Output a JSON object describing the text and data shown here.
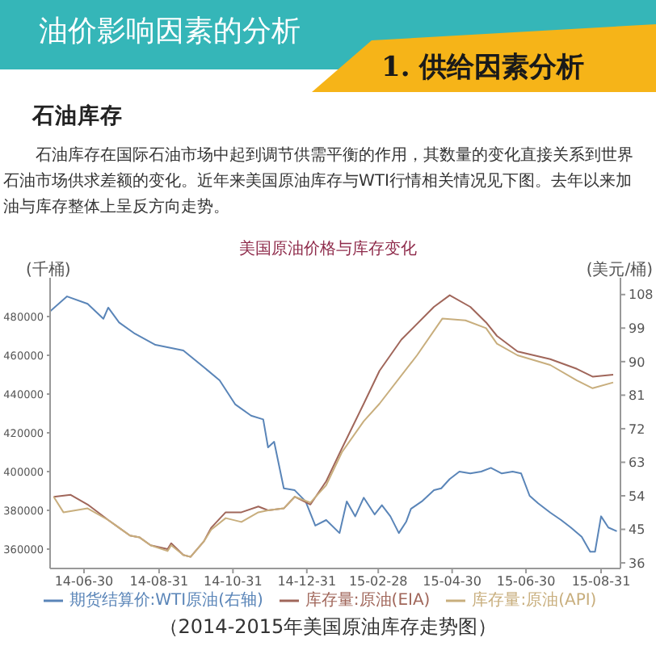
{
  "chart_data": {
    "type": "line",
    "title": "美国原油价格与库存变化",
    "ylabel": "(千桶)",
    "y2label": "(美元/桶)",
    "annotations": [
      "油价影响因素的分析",
      "1. 供给因素分析",
      "石油库存",
      "石油库存在国际石油市场中起到调节供需平衡的作用，其数量的变化直接关系到世界石油市场供求差额的变化。近年来美国原油库存与WTI行情相关情况见下图。去年以来加油与库存整体上呈反方向走势。",
      "（2014-2015年美国原油库存走势图）"
    ],
    "xlim": [
      "2014-06-02",
      "2015-09-16"
    ],
    "xticks": [
      {
        "value": "2014-06-30",
        "label": "14-06-30"
      },
      {
        "value": "2014-08-31",
        "label": "14-08-31"
      },
      {
        "value": "2014-10-31",
        "label": "14-10-31"
      },
      {
        "value": "2014-12-31",
        "label": "14-12-31"
      },
      {
        "value": "2015-02-28",
        "label": "15-02-28"
      },
      {
        "value": "2015-04-30",
        "label": "15-04-30"
      },
      {
        "value": "2015-06-30",
        "label": "15-06-30"
      },
      {
        "value": "2015-08-31",
        "label": "15-08-31"
      }
    ],
    "ylim": [
      350000,
      500000
    ],
    "yticks": [
      360000,
      380000,
      400000,
      420000,
      440000,
      460000,
      480000
    ],
    "y2lim": [
      34.5,
      112.5
    ],
    "y2ticks": [
      36,
      45,
      54,
      63,
      72,
      81,
      90,
      99,
      108
    ],
    "legend": "bottom",
    "series": [
      {
        "name": "期货结算价:WTI原油(右轴)",
        "color": "#5a85b8",
        "axis": "y2",
        "x": [
          "2014-06-02",
          "2014-06-16",
          "2014-07-03",
          "2014-07-16",
          "2014-07-20",
          "2014-07-29",
          "2014-08-11",
          "2014-08-28",
          "2014-09-20",
          "2014-10-07",
          "2014-10-20",
          "2014-11-02",
          "2014-11-15",
          "2014-11-25",
          "2014-11-29",
          "2014-12-04",
          "2014-12-12",
          "2014-12-21",
          "2014-12-30",
          "2015-01-07",
          "2015-01-16",
          "2015-01-27",
          "2015-02-02",
          "2015-02-09",
          "2015-02-16",
          "2015-02-25",
          "2015-03-03",
          "2015-03-10",
          "2015-03-17",
          "2015-03-23",
          "2015-03-27",
          "2015-04-05",
          "2015-04-15",
          "2015-04-21",
          "2015-04-28",
          "2015-05-06",
          "2015-05-15",
          "2015-05-24",
          "2015-06-01",
          "2015-06-10",
          "2015-06-19",
          "2015-06-26",
          "2015-07-03",
          "2015-07-10",
          "2015-07-20",
          "2015-07-29",
          "2015-08-06",
          "2015-08-15",
          "2015-08-22",
          "2015-08-26",
          "2015-08-31",
          "2015-09-06",
          "2015-09-13"
        ],
        "values": [
          103.5,
          107.5,
          105.5,
          101.5,
          104.5,
          100.5,
          97.5,
          94.5,
          93,
          88.5,
          85,
          78.5,
          75.5,
          74.5,
          67,
          68.5,
          56,
          55.5,
          52.5,
          46,
          47.5,
          44,
          52.5,
          48.5,
          53.5,
          49,
          51.5,
          48.5,
          44,
          47,
          50.5,
          52.5,
          55.5,
          56,
          58.5,
          60.5,
          60,
          60.5,
          61.5,
          60,
          60.5,
          60,
          54,
          52,
          49.5,
          47.5,
          45.5,
          43,
          39,
          39,
          48.5,
          45.5,
          44.5
        ]
      },
      {
        "name": "库存量:原油(EIA)",
        "color": "#a0665a",
        "x": [
          "2014-06-05",
          "2014-06-19",
          "2014-07-03",
          "2014-07-20",
          "2014-07-29",
          "2014-08-07",
          "2014-08-15",
          "2014-08-24",
          "2014-09-07",
          "2014-09-10",
          "2014-09-20",
          "2014-09-26",
          "2014-10-07",
          "2014-10-13",
          "2014-10-25",
          "2014-11-07",
          "2014-11-21",
          "2014-11-29",
          "2014-12-12",
          "2014-12-21",
          "2015-01-03",
          "2015-01-16",
          "2015-01-29",
          "2015-02-16",
          "2015-03-01",
          "2015-03-19",
          "2015-04-15",
          "2015-04-28",
          "2015-05-15",
          "2015-05-28",
          "2015-06-06",
          "2015-06-23",
          "2015-07-20",
          "2015-08-11",
          "2015-08-24",
          "2015-09-10"
        ],
        "values": [
          387000,
          388000,
          383000,
          375000,
          371000,
          367000,
          366000,
          362000,
          360000,
          363000,
          357000,
          356000,
          364000,
          371000,
          379000,
          379000,
          382000,
          380000,
          381000,
          387000,
          383000,
          395000,
          412000,
          435000,
          452000,
          468000,
          485000,
          491000,
          485000,
          477000,
          470000,
          462000,
          458000,
          453000,
          449000,
          450000
        ]
      },
      {
        "name": "库存量:原油(API)",
        "color": "#c8ae7d",
        "x": [
          "2014-06-05",
          "2014-06-13",
          "2014-07-03",
          "2014-07-20",
          "2014-07-29",
          "2014-08-07",
          "2014-08-15",
          "2014-08-24",
          "2014-09-07",
          "2014-09-10",
          "2014-09-20",
          "2014-09-26",
          "2014-10-07",
          "2014-10-13",
          "2014-10-25",
          "2014-11-07",
          "2014-11-21",
          "2014-11-29",
          "2014-12-12",
          "2014-12-21",
          "2015-01-03",
          "2015-01-16",
          "2015-01-29",
          "2015-02-16",
          "2015-03-01",
          "2015-04-01",
          "2015-04-22",
          "2015-05-11",
          "2015-05-28",
          "2015-06-06",
          "2015-06-23",
          "2015-07-20",
          "2015-08-11",
          "2015-08-24",
          "2015-09-10"
        ],
        "values": [
          387000,
          379000,
          381000,
          375000,
          371000,
          367000,
          366000,
          362000,
          359000,
          362000,
          357000,
          356000,
          364000,
          370000,
          376000,
          374000,
          379000,
          380000,
          381000,
          387000,
          384000,
          393000,
          410000,
          426000,
          435000,
          460000,
          479000,
          478000,
          474000,
          466000,
          460000,
          455000,
          447000,
          443000,
          446000
        ]
      }
    ]
  }
}
